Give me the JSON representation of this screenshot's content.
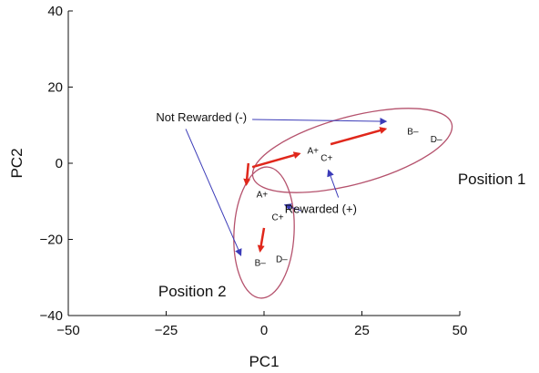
{
  "chart_data": {
    "type": "scatter",
    "xlabel": "PC1",
    "ylabel": "PC2",
    "xlim": [
      -50,
      50
    ],
    "ylim": [
      -40,
      40
    ],
    "x_ticks": [
      -50,
      -25,
      0,
      25,
      50
    ],
    "y_ticks": [
      -40,
      -20,
      0,
      20,
      40
    ],
    "x_tick_labels": [
      "−50",
      "−25",
      "0",
      "25",
      "50"
    ],
    "y_tick_labels": [
      "−40",
      "−20",
      "0",
      "20",
      "40"
    ],
    "grid": false,
    "points": [
      {
        "label": "A+",
        "x": 12.5,
        "y": 3.5
      },
      {
        "label": "C+",
        "x": 16,
        "y": 1.5
      },
      {
        "label": "B–",
        "x": 38,
        "y": 8.5
      },
      {
        "label": "D–",
        "x": 44,
        "y": 6.5
      },
      {
        "label": "A+",
        "x": -0.5,
        "y": -8
      },
      {
        "label": "C+",
        "x": 3.5,
        "y": -14
      },
      {
        "label": "B–",
        "x": -1,
        "y": -26
      },
      {
        "label": "D–",
        "x": 4.5,
        "y": -25
      }
    ],
    "groups": [
      {
        "name": "Position 1",
        "label_at": [
          49.5,
          -5.5
        ],
        "color": "#b5526d"
      },
      {
        "name": "Position 2",
        "label_at": [
          -27,
          -35
        ],
        "color": "#b5526d"
      }
    ],
    "trajectory_arrows": {
      "color": "#e0271b",
      "segments": [
        {
          "from": [
            -3,
            -1
          ],
          "to": [
            9,
            2.5
          ]
        },
        {
          "from": [
            17,
            5
          ],
          "to": [
            31,
            9
          ]
        },
        {
          "from": [
            -4,
            0
          ],
          "to": [
            -4.5,
            -5.5
          ]
        },
        {
          "from": [
            0,
            -17
          ],
          "to": [
            -1,
            -23
          ]
        }
      ]
    },
    "annotations": [
      {
        "text": "Not Rewarded (-)",
        "at": [
          -16,
          11
        ],
        "color": "#3b3bb8",
        "arrows": [
          {
            "from": [
              -3,
              11.5
            ],
            "to": [
              31,
              11
            ]
          },
          {
            "from": [
              -20,
              9
            ],
            "to": [
              -6,
              -24
            ]
          }
        ]
      },
      {
        "text": "Rewarded (+)",
        "at": [
          14.5,
          -13
        ],
        "color": "#3b3bb8",
        "arrows": [
          {
            "from": [
              9.5,
              -12.5
            ],
            "to": [
              5.5,
              -11
            ]
          },
          {
            "from": [
              19,
              -9
            ],
            "to": [
              16.5,
              -2
            ]
          }
        ]
      }
    ]
  }
}
